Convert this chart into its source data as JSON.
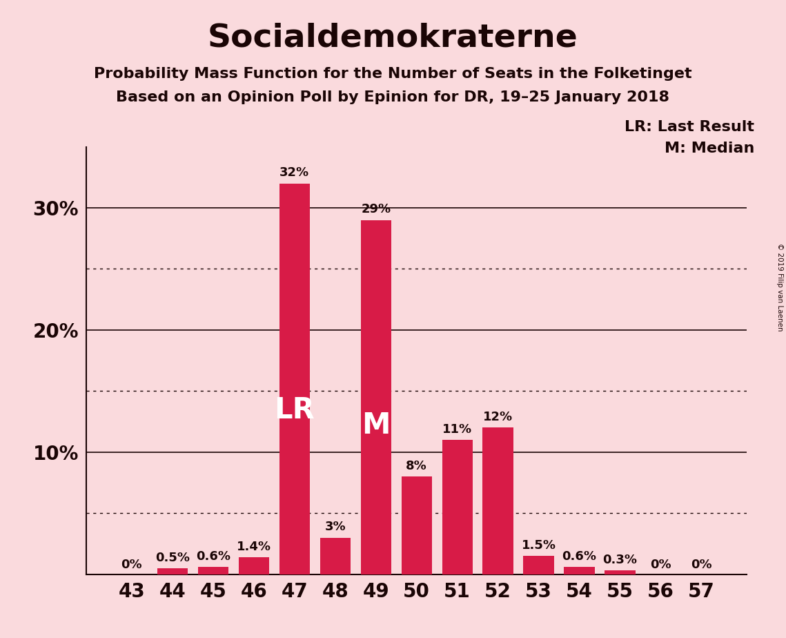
{
  "title": "Socialdemokraterne",
  "subtitle1": "Probability Mass Function for the Number of Seats in the Folketinget",
  "subtitle2": "Based on an Opinion Poll by Epinion for DR, 19–25 January 2018",
  "copyright": "© 2019 Filip van Laenen",
  "categories": [
    43,
    44,
    45,
    46,
    47,
    48,
    49,
    50,
    51,
    52,
    53,
    54,
    55,
    56,
    57
  ],
  "values": [
    0.0,
    0.5,
    0.6,
    1.4,
    32.0,
    3.0,
    29.0,
    8.0,
    11.0,
    12.0,
    1.5,
    0.6,
    0.3,
    0.0,
    0.0
  ],
  "labels": [
    "0%",
    "0.5%",
    "0.6%",
    "1.4%",
    "32%",
    "3%",
    "29%",
    "8%",
    "11%",
    "12%",
    "1.5%",
    "0.6%",
    "0.3%",
    "0%",
    "0%"
  ],
  "bar_color": "#D81B47",
  "background_color": "#FADADD",
  "text_color": "#1a0505",
  "solid_ticks": [
    10,
    20,
    30
  ],
  "dotted_ticks": [
    5,
    15,
    25
  ],
  "ylim": [
    0,
    35
  ],
  "lr_index": 4,
  "m_index": 6,
  "legend_lr": "LR: Last Result",
  "legend_m": "M: Median"
}
